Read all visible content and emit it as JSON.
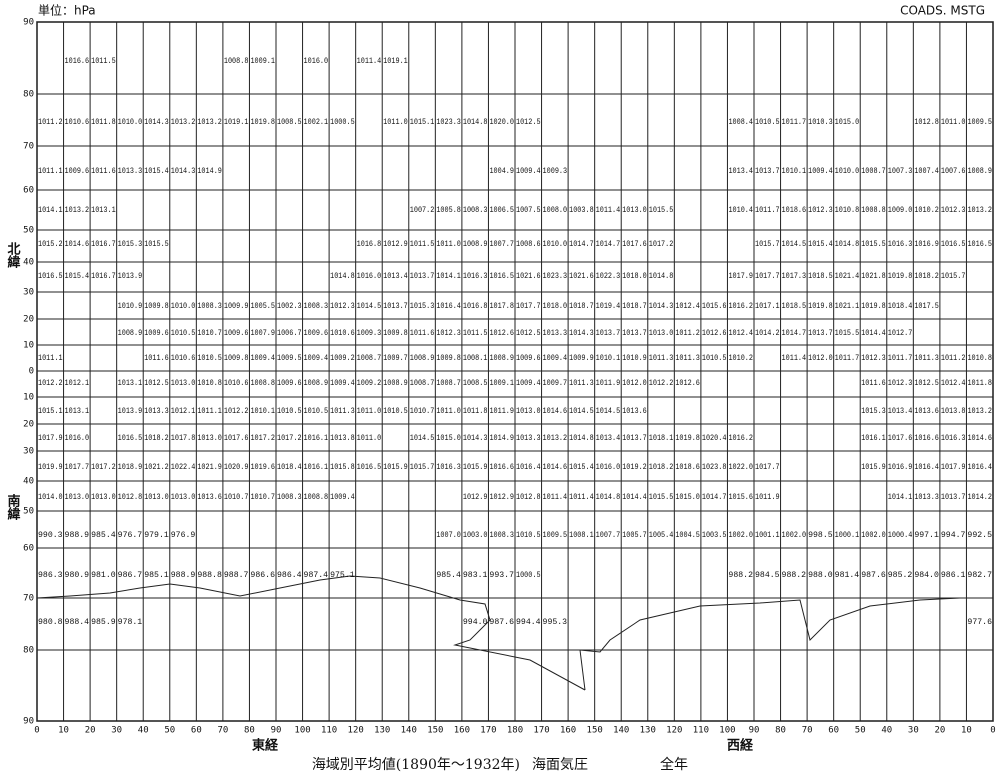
{
  "header": {
    "unit": "単位：hPa",
    "code": "COADS. MSTG"
  },
  "side_labels": {
    "north": "北緯",
    "south": "南緯",
    "east": "東経",
    "west": "西経"
  },
  "caption": {
    "title": "海域別平均値(1890年～1932年)",
    "variable": "海面気圧",
    "period": "全年"
  },
  "lat_labels": [
    90,
    80,
    70,
    60,
    50,
    40,
    30,
    20,
    10,
    0,
    10,
    20,
    30,
    40,
    50,
    60,
    70,
    80,
    90
  ],
  "lon_labels": [
    0,
    10,
    20,
    30,
    40,
    50,
    60,
    70,
    80,
    90,
    100,
    110,
    120,
    130,
    140,
    150,
    160,
    170,
    180,
    170,
    160,
    150,
    140,
    130,
    120,
    110,
    100,
    90,
    80,
    70,
    60,
    50,
    40,
    30,
    20,
    10,
    0
  ],
  "cells": [
    [
      null,
      "1016.6",
      "1011.5",
      null,
      null,
      null,
      null,
      "1008.8",
      "1009.1",
      null,
      "1016.0",
      null,
      "1011.4",
      "1019.1",
      null,
      null,
      null,
      null,
      null,
      null,
      null,
      null,
      null,
      null,
      null,
      null,
      null,
      null,
      null,
      null,
      null,
      null,
      null,
      null,
      null,
      null
    ],
    [
      "1011.2",
      "1010.6",
      "1011.8",
      "1010.0",
      "1014.3",
      "1013.2",
      "1013.2",
      "1019.1",
      "1019.8",
      "1008.5",
      "1002.1",
      "1000.5",
      null,
      "1011.0",
      "1015.1",
      "1023.3",
      "1014.8",
      "1020.0",
      "1012.5",
      null,
      null,
      null,
      null,
      null,
      null,
      null,
      "1008.4",
      "1010.5",
      "1011.7",
      "1010.3",
      "1015.0",
      null,
      null,
      "1012.8",
      "1011.0",
      "1009.5"
    ],
    [
      "1011.1",
      "1009.6",
      "1011.6",
      "1013.3",
      "1015.4",
      "1014.3",
      "1014.9",
      null,
      null,
      null,
      null,
      null,
      null,
      null,
      null,
      null,
      null,
      "1004.9",
      "1009.4",
      "1009.3",
      null,
      null,
      null,
      null,
      null,
      null,
      "1013.4",
      "1013.7",
      "1010.1",
      "1009.4",
      "1010.0",
      "1008.7",
      "1007.3",
      "1007.4",
      "1007.6",
      "1008.9"
    ],
    [
      "1014.1",
      "1013.2",
      "1013.1",
      null,
      null,
      null,
      null,
      null,
      null,
      null,
      null,
      null,
      null,
      null,
      "1007.2",
      "1005.8",
      "1008.3",
      "1006.5",
      "1007.5",
      "1008.0",
      "1003.8",
      "1011.4",
      "1013.0",
      "1015.5",
      null,
      null,
      "1010.4",
      "1011.7",
      "1018.6",
      "1012.3",
      "1010.8",
      "1008.8",
      "1009.0",
      "1010.2",
      "1012.3",
      "1013.2"
    ],
    [
      "1015.2",
      "1014.6",
      "1016.7",
      "1015.3",
      "1015.5",
      null,
      null,
      null,
      null,
      null,
      null,
      null,
      "1016.8",
      "1012.9",
      "1011.5",
      "1011.0",
      "1008.9",
      "1007.7",
      "1008.6",
      "1010.0",
      "1014.7",
      "1014.7",
      "1017.6",
      "1017.2",
      null,
      null,
      null,
      "1015.7",
      "1014.5",
      "1015.4",
      "1014.8",
      "1015.5",
      "1016.3",
      "1016.9",
      "1016.5",
      "1016.5"
    ],
    [
      "1016.5",
      "1015.4",
      "1016.7",
      "1013.9",
      null,
      null,
      null,
      null,
      null,
      null,
      null,
      "1014.8",
      "1016.0",
      "1013.4",
      "1013.7",
      "1014.1",
      "1016.3",
      "1016.5",
      "1021.6",
      "1023.3",
      "1021.6",
      "1022.3",
      "1018.0",
      "1014.8",
      null,
      null,
      "1017.9",
      "1017.7",
      "1017.3",
      "1018.5",
      "1021.4",
      "1021.8",
      "1019.8",
      "1018.2",
      "1015.7",
      null
    ],
    [
      null,
      null,
      null,
      "1010.9",
      "1009.8",
      "1010.0",
      "1008.3",
      "1009.9",
      "1005.5",
      "1002.3",
      "1008.3",
      "1012.3",
      "1014.5",
      "1013.7",
      "1015.3",
      "1016.4",
      "1016.8",
      "1017.8",
      "1017.7",
      "1018.0",
      "1018.7",
      "1019.4",
      "1018.7",
      "1014.3",
      "1012.4",
      "1015.6",
      "1016.2",
      "1017.1",
      "1018.5",
      "1019.8",
      "1021.1",
      "1019.8",
      "1018.4",
      "1017.5",
      null,
      null
    ],
    [
      null,
      null,
      null,
      "1008.9",
      "1009.6",
      "1010.5",
      "1010.7",
      "1009.6",
      "1007.9",
      "1006.7",
      "1009.6",
      "1010.6",
      "1009.3",
      "1009.8",
      "1011.6",
      "1012.3",
      "1011.5",
      "1012.6",
      "1012.5",
      "1013.3",
      "1014.3",
      "1013.7",
      "1013.7",
      "1013.0",
      "1011.2",
      "1012.6",
      "1012.4",
      "1014.2",
      "1014.7",
      "1013.7",
      "1015.5",
      "1014.4",
      "1012.7",
      null,
      null,
      null
    ],
    [
      "1011.1",
      null,
      null,
      null,
      "1011.6",
      "1010.6",
      "1010.5",
      "1009.8",
      "1009.4",
      "1009.5",
      "1009.4",
      "1009.2",
      "1008.7",
      "1009.7",
      "1008.9",
      "1009.8",
      "1008.1",
      "1008.9",
      "1009.6",
      "1009.4",
      "1009.9",
      "1010.1",
      "1010.9",
      "1011.3",
      "1011.3",
      "1010.5",
      "1010.2",
      null,
      "1011.4",
      "1012.0",
      "1011.7",
      "1012.3",
      "1011.7",
      "1011.3",
      "1011.2",
      "1010.8"
    ],
    [
      "1012.2",
      "1012.1",
      null,
      "1013.1",
      "1012.5",
      "1013.0",
      "1010.8",
      "1010.6",
      "1008.8",
      "1009.6",
      "1008.9",
      "1009.4",
      "1009.2",
      "1008.9",
      "1008.7",
      "1008.7",
      "1008.5",
      "1009.1",
      "1009.4",
      "1009.7",
      "1011.3",
      "1011.9",
      "1012.0",
      "1012.2",
      "1012.6",
      null,
      null,
      null,
      null,
      null,
      null,
      "1011.6",
      "1012.3",
      "1012.5",
      "1012.4",
      "1011.8"
    ],
    [
      "1015.1",
      "1013.1",
      null,
      "1013.9",
      "1013.3",
      "1012.1",
      "1011.1",
      "1012.2",
      "1010.1",
      "1010.5",
      "1010.5",
      "1011.3",
      "1011.0",
      "1010.5",
      "1010.7",
      "1011.0",
      "1011.8",
      "1011.9",
      "1013.0",
      "1014.6",
      "1014.5",
      "1014.5",
      "1013.6",
      null,
      null,
      null,
      null,
      null,
      null,
      null,
      null,
      "1015.3",
      "1013.4",
      "1013.6",
      "1013.8",
      "1013.2"
    ],
    [
      "1017.9",
      "1016.0",
      null,
      "1016.5",
      "1018.2",
      "1017.8",
      "1013.0",
      "1017.6",
      "1017.2",
      "1017.2",
      "1016.1",
      "1013.8",
      "1011.0",
      null,
      "1014.5",
      "1015.0",
      "1014.3",
      "1014.9",
      "1013.3",
      "1013.2",
      "1014.8",
      "1013.4",
      "1013.7",
      "1018.1",
      "1019.8",
      "1020.4",
      "1016.2",
      null,
      null,
      null,
      null,
      "1016.1",
      "1017.6",
      "1016.6",
      "1016.3",
      "1014.6"
    ],
    [
      "1019.9",
      "1017.7",
      "1017.2",
      "1018.9",
      "1021.2",
      "1022.4",
      "1021.9",
      "1020.9",
      "1019.6",
      "1018.4",
      "1016.1",
      "1015.8",
      "1016.5",
      "1015.9",
      "1015.7",
      "1016.3",
      "1015.9",
      "1016.6",
      "1016.4",
      "1014.6",
      "1015.4",
      "1016.0",
      "1019.2",
      "1018.2",
      "1018.6",
      "1023.8",
      "1022.0",
      "1017.7",
      null,
      null,
      null,
      "1015.9",
      "1016.9",
      "1016.4",
      "1017.9",
      "1016.4"
    ],
    [
      "1014.0",
      "1013.0",
      "1013.0",
      "1012.8",
      "1013.0",
      "1013.0",
      "1013.6",
      "1010.7",
      "1010.7",
      "1008.3",
      "1008.8",
      "1009.4",
      null,
      null,
      null,
      null,
      "1012.9",
      "1012.9",
      "1012.8",
      "1011.4",
      "1011.4",
      "1014.8",
      "1014.4",
      "1015.5",
      "1015.0",
      "1014.7",
      "1015.6",
      "1011.9",
      null,
      null,
      null,
      null,
      "1014.1",
      "1013.3",
      "1013.7",
      "1014.2"
    ],
    [
      "990.3",
      "988.9",
      "985.4",
      "976.7",
      "979.1",
      "976.9",
      null,
      null,
      null,
      null,
      null,
      null,
      null,
      null,
      null,
      "1007.0",
      "1003.0",
      "1008.3",
      "1010.5",
      "1009.5",
      "1008.1",
      "1007.7",
      "1005.7",
      "1005.4",
      "1004.5",
      "1003.5",
      "1002.0",
      "1001.1",
      "1002.0",
      "998.5",
      "1000.1",
      "1002.0",
      "1000.4",
      "997.1",
      "994.7",
      "992.5"
    ],
    [
      "986.3",
      "980.9",
      "981.0",
      "986.7",
      "985.1",
      "988.9",
      "988.8",
      "988.7",
      "986.6",
      "986.4",
      "987.4",
      "975.1",
      null,
      null,
      null,
      "985.4",
      "983.1",
      "993.7",
      "1000.5",
      null,
      null,
      null,
      null,
      null,
      null,
      null,
      "988.2",
      "984.5",
      "988.2",
      "988.0",
      "981.4",
      "987.6",
      "985.2",
      "984.0",
      "986.1",
      "982.7"
    ],
    [
      "980.8",
      "988.4",
      "985.9",
      "978.1",
      null,
      null,
      null,
      null,
      null,
      null,
      null,
      null,
      null,
      null,
      null,
      null,
      "994.0",
      "987.6",
      "994.4",
      "995.3",
      null,
      null,
      null,
      null,
      null,
      null,
      null,
      null,
      null,
      null,
      null,
      null,
      null,
      null,
      null,
      "977.6"
    ]
  ]
}
